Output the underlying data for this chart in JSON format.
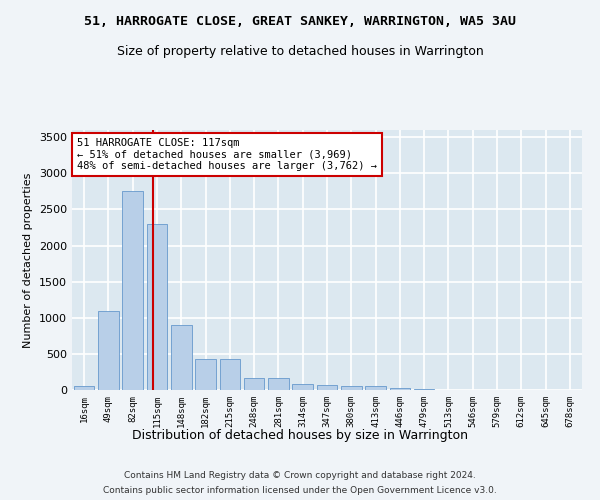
{
  "title": "51, HARROGATE CLOSE, GREAT SANKEY, WARRINGTON, WA5 3AU",
  "subtitle": "Size of property relative to detached houses in Warrington",
  "xlabel": "Distribution of detached houses by size in Warrington",
  "ylabel": "Number of detached properties",
  "categories": [
    "16sqm",
    "49sqm",
    "82sqm",
    "115sqm",
    "148sqm",
    "182sqm",
    "215sqm",
    "248sqm",
    "281sqm",
    "314sqm",
    "347sqm",
    "380sqm",
    "413sqm",
    "446sqm",
    "479sqm",
    "513sqm",
    "546sqm",
    "579sqm",
    "612sqm",
    "645sqm",
    "678sqm"
  ],
  "values": [
    50,
    1100,
    2750,
    2300,
    900,
    430,
    430,
    160,
    160,
    90,
    70,
    55,
    55,
    30,
    10,
    5,
    3,
    2,
    2,
    1,
    1
  ],
  "bar_color": "#b8cfe8",
  "bar_edge_color": "#6699cc",
  "background_color": "#dce8f0",
  "grid_color": "#ffffff",
  "annotation_line_color": "#cc0000",
  "annotation_box_color": "#ffffff",
  "annotation_text_line1": "51 HARROGATE CLOSE: 117sqm",
  "annotation_text_line2": "← 51% of detached houses are smaller (3,969)",
  "annotation_text_line3": "48% of semi-detached houses are larger (3,762) →",
  "red_line_x": 2.85,
  "ylim": [
    0,
    3600
  ],
  "yticks": [
    0,
    500,
    1000,
    1500,
    2000,
    2500,
    3000,
    3500
  ],
  "fig_bg": "#f0f4f8",
  "footer_line1": "Contains HM Land Registry data © Crown copyright and database right 2024.",
  "footer_line2": "Contains public sector information licensed under the Open Government Licence v3.0."
}
